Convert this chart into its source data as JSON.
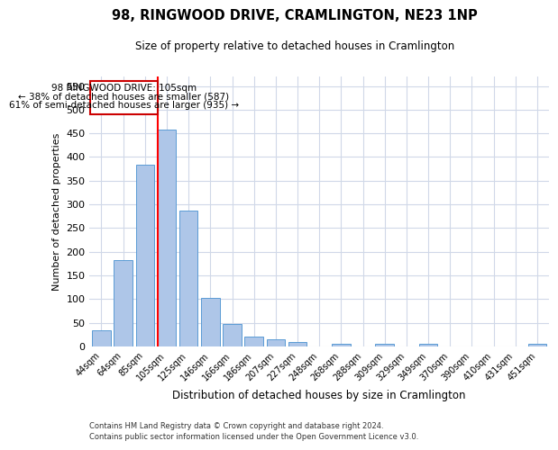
{
  "title": "98, RINGWOOD DRIVE, CRAMLINGTON, NE23 1NP",
  "subtitle": "Size of property relative to detached houses in Cramlington",
  "xlabel": "Distribution of detached houses by size in Cramlington",
  "ylabel": "Number of detached properties",
  "footer_line1": "Contains HM Land Registry data © Crown copyright and database right 2024.",
  "footer_line2": "Contains public sector information licensed under the Open Government Licence v3.0.",
  "categories": [
    "44sqm",
    "64sqm",
    "85sqm",
    "105sqm",
    "125sqm",
    "146sqm",
    "166sqm",
    "186sqm",
    "207sqm",
    "227sqm",
    "248sqm",
    "268sqm",
    "288sqm",
    "309sqm",
    "329sqm",
    "349sqm",
    "370sqm",
    "390sqm",
    "410sqm",
    "431sqm",
    "451sqm"
  ],
  "values": [
    35,
    183,
    384,
    458,
    287,
    103,
    48,
    20,
    15,
    10,
    0,
    5,
    0,
    5,
    0,
    5,
    0,
    0,
    0,
    0,
    5
  ],
  "bar_color": "#aec6e8",
  "bar_edge_color": "#5b9bd5",
  "property_idx": 3,
  "annotation_text_line1": "98 RINGWOOD DRIVE: 105sqm",
  "annotation_text_line2": "← 38% of detached houses are smaller (587)",
  "annotation_text_line3": "61% of semi-detached houses are larger (935) →",
  "annotation_box_color": "#cc0000",
  "ylim": [
    0,
    570
  ],
  "yticks": [
    0,
    50,
    100,
    150,
    200,
    250,
    300,
    350,
    400,
    450,
    500,
    550
  ],
  "bg_color": "#ffffff",
  "grid_color": "#d0d8e8"
}
